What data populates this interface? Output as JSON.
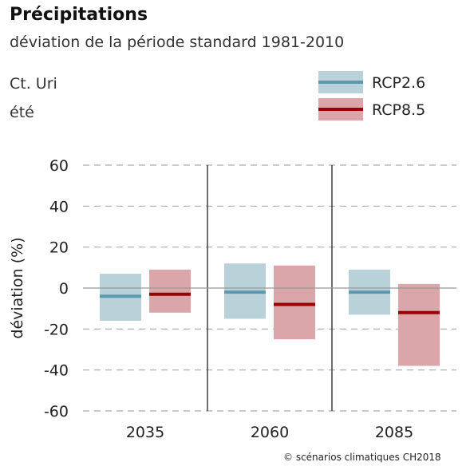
{
  "title": "Précipitations",
  "subtitle": "déviation de la période standard 1981-2010",
  "region": "Ct. Uri",
  "season": "été",
  "credit": "© scénarios climatiques CH2018",
  "colors": {
    "rcp26_band": "#b9d2da",
    "rcp26_line": "#5e98b0",
    "rcp85_band": "#daa6aa",
    "rcp85_line": "#9b0000",
    "grid": "#aaaaaa",
    "zero_line": "#999999",
    "separator": "#222222"
  },
  "chart_data": {
    "type": "bar",
    "ylabel": "déviation (%)",
    "xlabel": "",
    "ylim": [
      -60,
      60
    ],
    "yticks": [
      60,
      40,
      20,
      0,
      -20,
      -40,
      -60
    ],
    "grid": true,
    "legend_position": "top-right",
    "categories": [
      "2035",
      "2060",
      "2085"
    ],
    "series": [
      {
        "name": "RCP2.6",
        "low": [
          -16,
          -15,
          -13
        ],
        "high": [
          7,
          12,
          9
        ],
        "median": [
          -4,
          -2,
          -2
        ]
      },
      {
        "name": "RCP8.5",
        "low": [
          -12,
          -25,
          -38
        ],
        "high": [
          9,
          11,
          2
        ],
        "median": [
          -3,
          -8,
          -12
        ]
      }
    ]
  }
}
